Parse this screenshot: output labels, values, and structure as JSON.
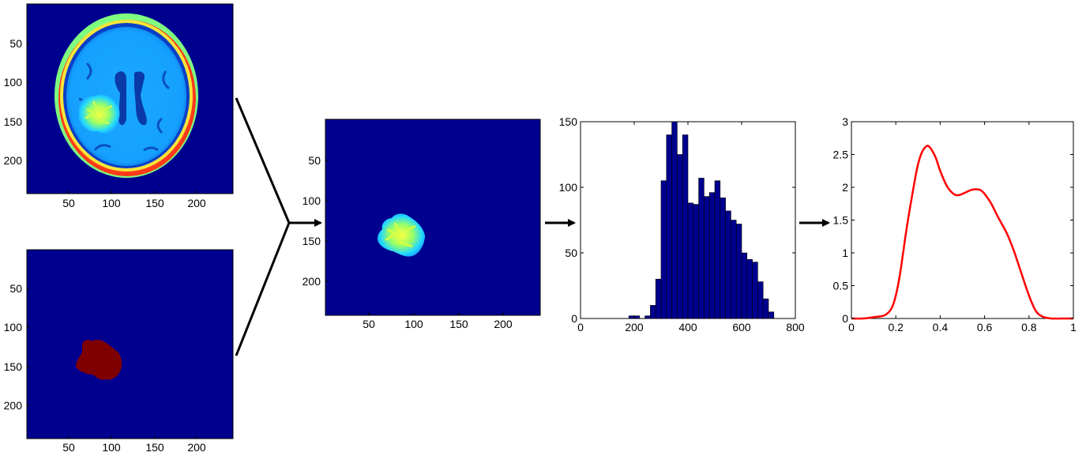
{
  "colors": {
    "image_background": "#00008f",
    "brain_tissue": "#22a8ff",
    "tumor_mask": "#7f0000",
    "histogram_bar": "#00008f",
    "density_curve": "#ff0000",
    "axis": "#000000"
  },
  "panels": {
    "mri_image": {
      "xticks": [
        "50",
        "100",
        "150",
        "200"
      ],
      "yticks": [
        "50",
        "100",
        "150",
        "200"
      ]
    },
    "mask_image": {
      "xticks": [
        "50",
        "100",
        "150",
        "200"
      ],
      "yticks": [
        "50",
        "100",
        "150",
        "200"
      ]
    },
    "roi_image": {
      "xticks": [
        "50",
        "100",
        "150",
        "200"
      ],
      "yticks": [
        "50",
        "100",
        "150",
        "200"
      ]
    }
  },
  "chart_data": [
    {
      "type": "bar",
      "bin_width": 20,
      "bin_starts": [
        180,
        200,
        240,
        260,
        280,
        300,
        320,
        340,
        360,
        380,
        400,
        420,
        440,
        460,
        480,
        500,
        520,
        540,
        560,
        580,
        600,
        620,
        640,
        660,
        680,
        700
      ],
      "values": [
        2,
        2,
        2,
        10,
        30,
        105,
        140,
        150,
        125,
        140,
        88,
        87,
        107,
        93,
        96,
        105,
        92,
        82,
        75,
        72,
        50,
        45,
        43,
        28,
        15,
        5
      ],
      "xlim": [
        0,
        800
      ],
      "ylim": [
        0,
        150
      ],
      "xticks": [
        "0",
        "200",
        "400",
        "600",
        "800"
      ],
      "yticks": [
        "0",
        "50",
        "100",
        "150"
      ]
    },
    {
      "type": "line",
      "x": [
        0,
        0.05,
        0.1,
        0.15,
        0.18,
        0.2,
        0.22,
        0.25,
        0.28,
        0.3,
        0.32,
        0.34,
        0.35,
        0.36,
        0.38,
        0.4,
        0.43,
        0.46,
        0.48,
        0.5,
        0.52,
        0.54,
        0.56,
        0.58,
        0.6,
        0.63,
        0.66,
        0.7,
        0.73,
        0.76,
        0.8,
        0.83,
        0.86,
        0.9,
        0.95,
        1.0
      ],
      "y": [
        0,
        0,
        0.02,
        0.05,
        0.15,
        0.35,
        0.7,
        1.4,
        2.0,
        2.35,
        2.55,
        2.63,
        2.62,
        2.58,
        2.45,
        2.25,
        2.02,
        1.9,
        1.88,
        1.9,
        1.93,
        1.96,
        1.97,
        1.96,
        1.9,
        1.75,
        1.55,
        1.3,
        1.05,
        0.75,
        0.35,
        0.12,
        0.03,
        0.0,
        0,
        0
      ],
      "xlim": [
        0,
        1
      ],
      "ylim": [
        0,
        3
      ],
      "xticks": [
        "0",
        "0.2",
        "0.4",
        "0.6",
        "0.8",
        "1"
      ],
      "yticks": [
        "0",
        "0.5",
        "1",
        "1.5",
        "2",
        "2.5",
        "3"
      ]
    }
  ]
}
